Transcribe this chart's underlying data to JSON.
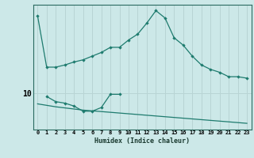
{
  "xlabel": "Humidex (Indice chaleur)",
  "bg_color": "#cce8e8",
  "line_color": "#1e7b6e",
  "grid_color": "#b8d4d4",
  "x_ticks": [
    0,
    1,
    2,
    3,
    4,
    5,
    6,
    7,
    8,
    9,
    10,
    11,
    12,
    13,
    14,
    15,
    16,
    17,
    18,
    19,
    20,
    21,
    22,
    23
  ],
  "y_tick_val": 10,
  "ylim": [
    5,
    22
  ],
  "xlim": [
    -0.5,
    23.5
  ],
  "series1_x": [
    0,
    1,
    2,
    3,
    4,
    5,
    6,
    7,
    8,
    9,
    10,
    11,
    12,
    13,
    14,
    15,
    16,
    17,
    18,
    19,
    20,
    21,
    22,
    23
  ],
  "series1_y": [
    20.5,
    13.5,
    13.5,
    13.8,
    14.2,
    14.5,
    15.0,
    15.5,
    16.2,
    16.2,
    17.2,
    18.0,
    19.5,
    21.2,
    20.2,
    17.5,
    16.5,
    15.0,
    13.8,
    13.2,
    12.8,
    12.2,
    12.2,
    12.0
  ],
  "series2_x": [
    1,
    2,
    3,
    4,
    5,
    6,
    7,
    8,
    9
  ],
  "series2_y": [
    9.5,
    8.8,
    8.6,
    8.2,
    7.5,
    7.5,
    8.0,
    9.8,
    9.8
  ],
  "series3_x": [
    0,
    1,
    2,
    3,
    4,
    5,
    6,
    7,
    8,
    9,
    10,
    11,
    12,
    13,
    14,
    15,
    16,
    17,
    18,
    19,
    20,
    21,
    22,
    23
  ],
  "series3_y": [
    8.5,
    8.3,
    8.1,
    7.95,
    7.8,
    7.65,
    7.55,
    7.45,
    7.35,
    7.25,
    7.15,
    7.05,
    6.95,
    6.85,
    6.75,
    6.65,
    6.55,
    6.45,
    6.35,
    6.25,
    6.15,
    6.05,
    5.95,
    5.85
  ]
}
